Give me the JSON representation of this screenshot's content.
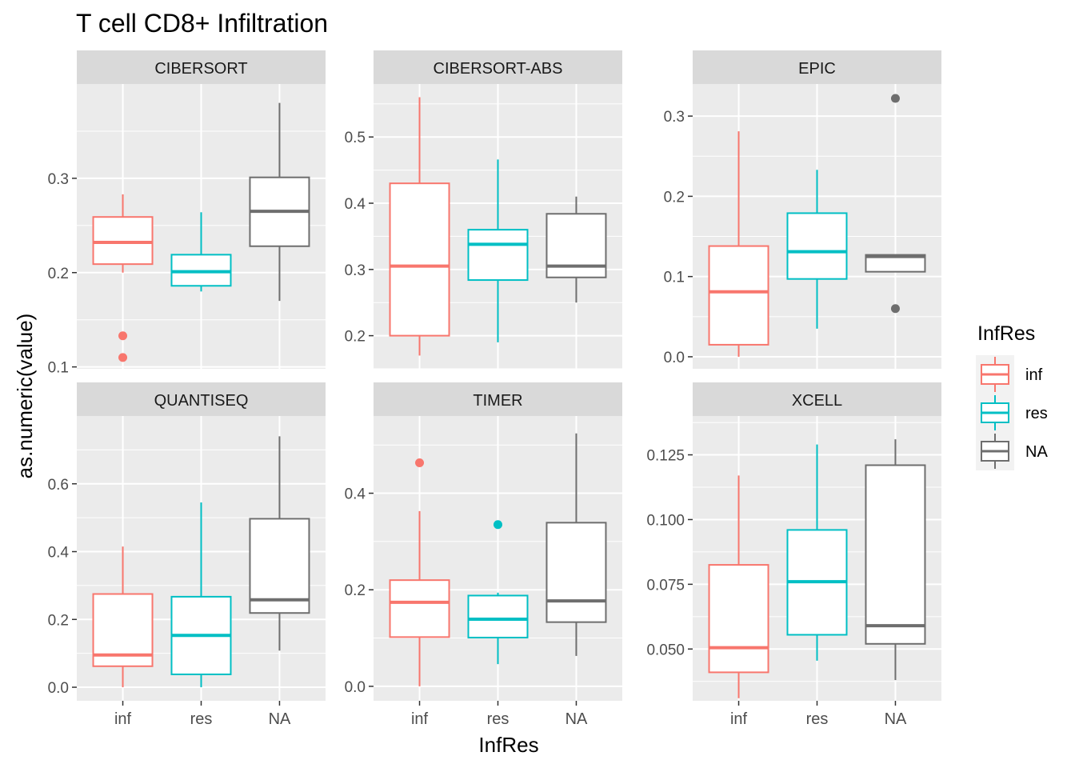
{
  "chart_data": {
    "type": "boxplot",
    "title": "T cell CD8+ Infiltration",
    "xlabel": "InfRes",
    "ylabel": "as.numeric(value)",
    "categories": [
      "inf",
      "res",
      "NA"
    ],
    "legend": {
      "title": "InfRes",
      "placement": "right",
      "entries": [
        {
          "label": "inf",
          "color": "#F8766D"
        },
        {
          "label": "res",
          "color": "#00BFC4"
        },
        {
          "label": "NA",
          "color": "#6E6E6E"
        }
      ]
    },
    "grid": true,
    "panels": [
      {
        "name": "CIBERSORT",
        "ylim": [
          0.098,
          0.4
        ],
        "yticks": [
          0.1,
          0.2,
          0.3
        ],
        "ytick_labels": [
          "0.1",
          "0.2",
          "0.3"
        ],
        "boxes": [
          {
            "category": "inf",
            "min": 0.2,
            "q1": 0.209,
            "median": 0.232,
            "q3": 0.259,
            "max": 0.283,
            "outliers": [
              0.133,
              0.11
            ]
          },
          {
            "category": "res",
            "min": 0.18,
            "q1": 0.186,
            "median": 0.201,
            "q3": 0.219,
            "max": 0.264,
            "outliers": []
          },
          {
            "category": "NA",
            "min": 0.17,
            "q1": 0.228,
            "median": 0.265,
            "q3": 0.301,
            "max": 0.38,
            "outliers": []
          }
        ]
      },
      {
        "name": "CIBERSORT-ABS",
        "ylim": [
          0.15,
          0.58
        ],
        "yticks": [
          0.2,
          0.3,
          0.4,
          0.5
        ],
        "ytick_labels": [
          "0.2",
          "0.3",
          "0.4",
          "0.5"
        ],
        "boxes": [
          {
            "category": "inf",
            "min": 0.17,
            "q1": 0.2,
            "median": 0.305,
            "q3": 0.43,
            "max": 0.56,
            "outliers": []
          },
          {
            "category": "res",
            "min": 0.19,
            "q1": 0.284,
            "median": 0.338,
            "q3": 0.36,
            "max": 0.466,
            "outliers": []
          },
          {
            "category": "NA",
            "min": 0.25,
            "q1": 0.288,
            "median": 0.305,
            "q3": 0.384,
            "max": 0.41,
            "outliers": []
          }
        ]
      },
      {
        "name": "EPIC",
        "ylim": [
          -0.015,
          0.34
        ],
        "yticks": [
          0.0,
          0.1,
          0.2,
          0.3
        ],
        "ytick_labels": [
          "0.0",
          "0.1",
          "0.2",
          "0.3"
        ],
        "boxes": [
          {
            "category": "inf",
            "min": 0.0,
            "q1": 0.015,
            "median": 0.081,
            "q3": 0.138,
            "max": 0.281,
            "outliers": []
          },
          {
            "category": "res",
            "min": 0.035,
            "q1": 0.097,
            "median": 0.131,
            "q3": 0.179,
            "max": 0.233,
            "outliers": []
          },
          {
            "category": "NA",
            "min": 0.106,
            "q1": 0.106,
            "median": 0.125,
            "q3": 0.127,
            "max": 0.127,
            "outliers": [
              0.322,
              0.06
            ]
          }
        ]
      },
      {
        "name": "QUANTISEQ",
        "ylim": [
          -0.04,
          0.8
        ],
        "yticks": [
          0.0,
          0.2,
          0.4,
          0.6
        ],
        "ytick_labels": [
          "0.0",
          "0.2",
          "0.4",
          "0.6"
        ],
        "boxes": [
          {
            "category": "inf",
            "min": 0.0,
            "q1": 0.062,
            "median": 0.095,
            "q3": 0.275,
            "max": 0.415,
            "outliers": []
          },
          {
            "category": "res",
            "min": 0.0,
            "q1": 0.038,
            "median": 0.153,
            "q3": 0.267,
            "max": 0.545,
            "outliers": []
          },
          {
            "category": "NA",
            "min": 0.108,
            "q1": 0.219,
            "median": 0.258,
            "q3": 0.497,
            "max": 0.74,
            "outliers": []
          }
        ]
      },
      {
        "name": "TIMER",
        "ylim": [
          -0.03,
          0.56
        ],
        "yticks": [
          0.0,
          0.2,
          0.4
        ],
        "ytick_labels": [
          "0.0",
          "0.2",
          "0.4"
        ],
        "boxes": [
          {
            "category": "inf",
            "min": 0.0,
            "q1": 0.102,
            "median": 0.174,
            "q3": 0.22,
            "max": 0.363,
            "outliers": [
              0.463
            ]
          },
          {
            "category": "res",
            "min": 0.046,
            "q1": 0.101,
            "median": 0.139,
            "q3": 0.188,
            "max": 0.194,
            "outliers": [
              0.335
            ]
          },
          {
            "category": "NA",
            "min": 0.063,
            "q1": 0.133,
            "median": 0.177,
            "q3": 0.339,
            "max": 0.524,
            "outliers": []
          }
        ]
      },
      {
        "name": "XCELL",
        "ylim": [
          0.03,
          0.14
        ],
        "yticks": [
          0.05,
          0.075,
          0.1,
          0.125
        ],
        "ytick_labels": [
          "0.050",
          "0.075",
          "0.100",
          "0.125"
        ],
        "boxes": [
          {
            "category": "inf",
            "min": 0.031,
            "q1": 0.041,
            "median": 0.0505,
            "q3": 0.0825,
            "max": 0.117,
            "outliers": []
          },
          {
            "category": "res",
            "min": 0.0455,
            "q1": 0.0555,
            "median": 0.076,
            "q3": 0.096,
            "max": 0.129,
            "outliers": []
          },
          {
            "category": "NA",
            "min": 0.038,
            "q1": 0.052,
            "median": 0.059,
            "q3": 0.121,
            "max": 0.131,
            "outliers": []
          }
        ]
      }
    ]
  }
}
